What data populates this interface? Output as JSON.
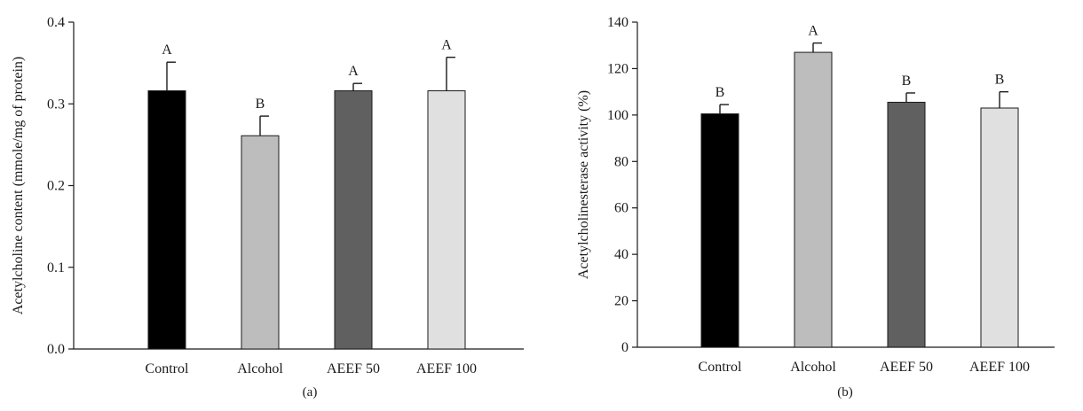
{
  "chart_data": [
    {
      "type": "bar",
      "panel_label": "(a)",
      "title": "",
      "xlabel": "",
      "ylabel": "Acetylcholine content (mmole/mg of protein)",
      "ylim": [
        0,
        0.4
      ],
      "yticks": [
        0.0,
        0.1,
        0.2,
        0.3,
        0.4
      ],
      "ytick_labels": [
        "0.0",
        "0.1",
        "0.2",
        "0.3",
        "0.4"
      ],
      "categories": [
        "Control",
        "Alcohol",
        "AEEF 50",
        "AEEF 100"
      ],
      "values": [
        0.316,
        0.261,
        0.316,
        0.316
      ],
      "errors": [
        0.035,
        0.024,
        0.009,
        0.041
      ],
      "significance": [
        "A",
        "B",
        "A",
        "A"
      ],
      "colors": [
        "#000000",
        "#bdbdbd",
        "#5f605f",
        "#e0e0e0"
      ],
      "grid": false
    },
    {
      "type": "bar",
      "panel_label": "(b)",
      "title": "",
      "xlabel": "",
      "ylabel": "Acetylcholinesterase activity (%)",
      "ylim": [
        0,
        140
      ],
      "yticks": [
        0,
        20,
        40,
        60,
        80,
        100,
        120,
        140
      ],
      "ytick_labels": [
        "0",
        "20",
        "40",
        "60",
        "80",
        "100",
        "120",
        "140"
      ],
      "categories": [
        "Control",
        "Alcohol",
        "AEEF 50",
        "AEEF 100"
      ],
      "values": [
        100.5,
        127.0,
        105.5,
        103.0
      ],
      "errors": [
        4.0,
        4.0,
        4.0,
        7.0
      ],
      "significance": [
        "B",
        "A",
        "B",
        "B"
      ],
      "colors": [
        "#000000",
        "#bdbdbd",
        "#5f605f",
        "#e0e0e0"
      ],
      "grid": false
    }
  ]
}
